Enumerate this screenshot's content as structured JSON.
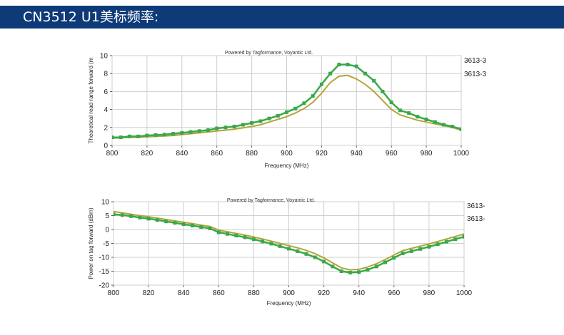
{
  "banner": {
    "title": "CN3512 U1美标频率:"
  },
  "colors": {
    "banner_bg": "#0e3a78",
    "series_green": "#3aa84a",
    "series_olive": "#b3a53a"
  },
  "chart_data": [
    {
      "type": "line",
      "subtitle": "Powered by Tagformance, Voyantic Ltd.",
      "xlabel": "Frequency (MHz)",
      "ylabel": "Theoretical read range forward (m",
      "xlim": [
        800,
        1000
      ],
      "ylim": [
        0,
        10
      ],
      "x_ticks": [
        800,
        820,
        840,
        860,
        880,
        900,
        920,
        940,
        960,
        980,
        1000
      ],
      "y_ticks": [
        0,
        2,
        4,
        6,
        8,
        10
      ],
      "grid": true,
      "legend_position": "right",
      "series": [
        {
          "name": "3613-3",
          "color": "#3aa84a",
          "marker": "square",
          "x": [
            800,
            805,
            810,
            815,
            820,
            825,
            830,
            835,
            840,
            845,
            850,
            855,
            860,
            865,
            870,
            875,
            880,
            885,
            890,
            895,
            900,
            905,
            910,
            915,
            920,
            925,
            930,
            935,
            940,
            945,
            950,
            955,
            960,
            965,
            970,
            975,
            980,
            985,
            990,
            995,
            1000
          ],
          "values": [
            0.9,
            0.9,
            1.0,
            1.0,
            1.1,
            1.15,
            1.2,
            1.3,
            1.4,
            1.5,
            1.6,
            1.7,
            1.9,
            2.0,
            2.1,
            2.3,
            2.5,
            2.7,
            3.0,
            3.3,
            3.7,
            4.1,
            4.7,
            5.5,
            6.8,
            8.0,
            9.0,
            9.0,
            8.8,
            8.0,
            7.2,
            6.0,
            4.8,
            3.9,
            3.6,
            3.2,
            2.9,
            2.6,
            2.3,
            2.1,
            1.8
          ]
        },
        {
          "name": "3613-3",
          "color": "#b3a53a",
          "marker": "none",
          "x": [
            800,
            805,
            810,
            815,
            820,
            825,
            830,
            835,
            840,
            845,
            850,
            855,
            860,
            865,
            870,
            875,
            880,
            885,
            890,
            895,
            900,
            905,
            910,
            915,
            920,
            925,
            930,
            935,
            940,
            945,
            950,
            955,
            960,
            965,
            970,
            975,
            980,
            985,
            990,
            995,
            1000
          ],
          "values": [
            0.8,
            0.85,
            0.9,
            0.9,
            0.95,
            1.0,
            1.05,
            1.1,
            1.2,
            1.3,
            1.4,
            1.5,
            1.6,
            1.7,
            1.8,
            1.95,
            2.1,
            2.3,
            2.6,
            2.9,
            3.2,
            3.6,
            4.1,
            4.8,
            5.8,
            7.0,
            7.7,
            7.8,
            7.4,
            6.8,
            6.0,
            5.0,
            4.0,
            3.4,
            3.1,
            2.8,
            2.6,
            2.4,
            2.2,
            2.0,
            1.7
          ]
        }
      ]
    },
    {
      "type": "line",
      "subtitle": "Powered by Tagformance, Voyantic Ltd.",
      "xlabel": "Frequency (MHz)",
      "ylabel": "Power on tag forward (dBm)",
      "xlim": [
        800,
        1000
      ],
      "ylim": [
        -20,
        10
      ],
      "x_ticks": [
        800,
        820,
        840,
        860,
        880,
        900,
        920,
        940,
        960,
        980,
        1000
      ],
      "y_ticks": [
        10,
        5,
        0,
        -5,
        -10,
        -15,
        -20
      ],
      "grid": true,
      "legend_position": "right",
      "series": [
        {
          "name": "3613-",
          "color": "#3aa84a",
          "marker": "square",
          "x": [
            800,
            805,
            810,
            815,
            820,
            825,
            830,
            835,
            840,
            845,
            850,
            855,
            860,
            865,
            870,
            875,
            880,
            885,
            890,
            895,
            900,
            905,
            910,
            915,
            920,
            925,
            930,
            935,
            940,
            945,
            950,
            955,
            960,
            965,
            970,
            975,
            980,
            985,
            990,
            995,
            1000
          ],
          "values": [
            5.5,
            5.2,
            4.8,
            4.3,
            3.9,
            3.4,
            2.9,
            2.4,
            1.9,
            1.4,
            0.9,
            0.4,
            -1.0,
            -1.6,
            -2.2,
            -2.8,
            -3.5,
            -4.3,
            -5.1,
            -6.0,
            -6.9,
            -7.8,
            -8.8,
            -10.0,
            -11.5,
            -13.3,
            -15.0,
            -15.5,
            -15.3,
            -14.5,
            -13.3,
            -11.8,
            -10.2,
            -8.6,
            -7.8,
            -7.0,
            -6.2,
            -5.3,
            -4.4,
            -3.5,
            -2.6
          ]
        },
        {
          "name": "3613-",
          "color": "#b3a53a",
          "marker": "none",
          "x": [
            800,
            805,
            810,
            815,
            820,
            825,
            830,
            835,
            840,
            845,
            850,
            855,
            860,
            865,
            870,
            875,
            880,
            885,
            890,
            895,
            900,
            905,
            910,
            915,
            920,
            925,
            930,
            935,
            940,
            945,
            950,
            955,
            960,
            965,
            970,
            975,
            980,
            985,
            990,
            995,
            1000
          ],
          "values": [
            6.5,
            6.0,
            5.5,
            5.0,
            4.6,
            4.1,
            3.6,
            3.1,
            2.6,
            2.1,
            1.6,
            1.1,
            -0.2,
            -0.8,
            -1.4,
            -2.0,
            -2.7,
            -3.4,
            -4.2,
            -5.0,
            -5.8,
            -6.6,
            -7.5,
            -8.7,
            -10.2,
            -12.0,
            -13.8,
            -14.5,
            -14.3,
            -13.5,
            -12.3,
            -10.8,
            -9.2,
            -7.6,
            -6.8,
            -6.0,
            -5.2,
            -4.3,
            -3.4,
            -2.5,
            -1.6
          ]
        }
      ]
    }
  ]
}
